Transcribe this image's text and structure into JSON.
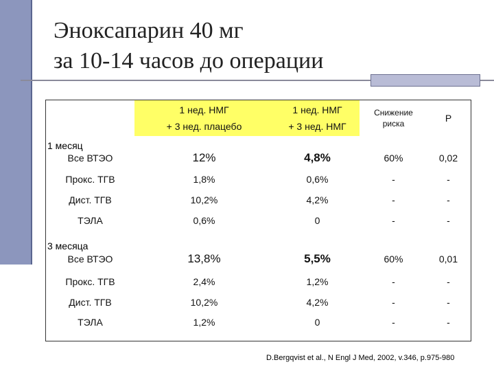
{
  "title": [
    "Эноксапарин 40 мг",
    "за 10-14 часов до операции"
  ],
  "table": {
    "columns": [
      [
        "1 нед. НМГ",
        "+ 3 нед. плацебо"
      ],
      [
        "1 нед. НМГ",
        "+ 3 нед. НМГ"
      ],
      [
        "Снижение",
        "риска"
      ],
      [
        "P"
      ]
    ],
    "sections": [
      {
        "label": "1 месяц",
        "rows": [
          [
            "Все ВТЭО",
            "12%",
            "4,8%",
            "60%",
            "0,02"
          ],
          [
            "Прокс. ТГВ",
            "1,8%",
            "0,6%",
            "-",
            "-"
          ],
          [
            "Дист. ТГВ",
            "10,2%",
            "4,2%",
            "-",
            "-"
          ],
          [
            "ТЭЛА",
            "0,6%",
            "0",
            "-",
            "-"
          ]
        ]
      },
      {
        "label": "3 месяца",
        "rows": [
          [
            "Все ВТЭО",
            "13,8%",
            "5,5%",
            "60%",
            "0,01"
          ],
          [
            "Прокс. ТГВ",
            "2,4%",
            "1,2%",
            "-",
            "-"
          ],
          [
            "Дист. ТГВ",
            "10,2%",
            "4,2%",
            "-",
            "-"
          ],
          [
            "ТЭЛА",
            "1,2%",
            "0",
            "-",
            "-"
          ]
        ]
      }
    ]
  },
  "source": "D.Bergqvist et al., N Engl J Med, 2002, v.346, p.975-980"
}
